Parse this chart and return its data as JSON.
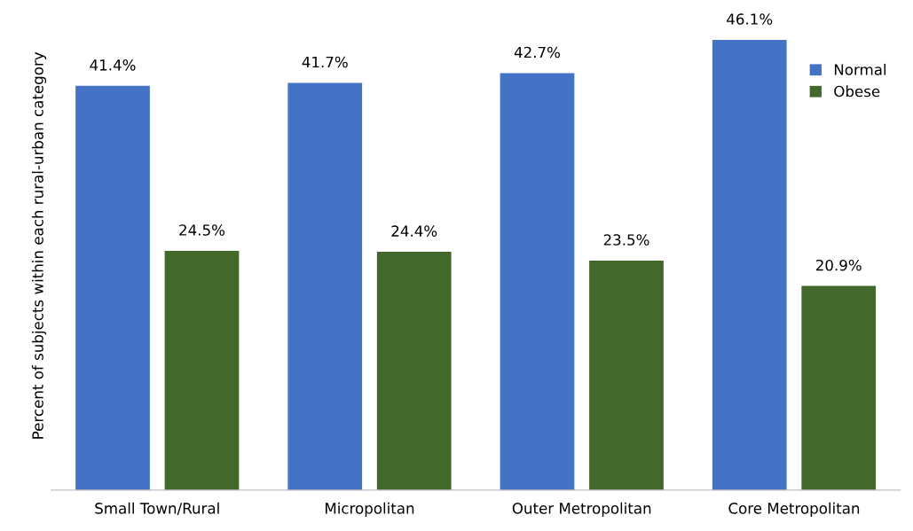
{
  "chart_data": {
    "type": "bar",
    "ylabel": "Percent of subjects within each rural-urban category",
    "categories": [
      "Small Town/Rural",
      "Micropolitan",
      "Outer Metropolitan",
      "Core Metropolitan"
    ],
    "series": [
      {
        "name": "Normal",
        "color": "#4472c4",
        "values": [
          41.4,
          41.7,
          42.7,
          46.1
        ],
        "value_labels": [
          "41.4%",
          "41.7%",
          "42.7%",
          "46.1%"
        ]
      },
      {
        "name": "Obese",
        "color": "#43682b",
        "values": [
          24.5,
          24.4,
          23.5,
          20.9
        ],
        "value_labels": [
          "24.5%",
          "24.4%",
          "23.5%",
          "20.9%"
        ]
      }
    ],
    "tick_labels": "x",
    "grid": false,
    "legend": "top right"
  }
}
